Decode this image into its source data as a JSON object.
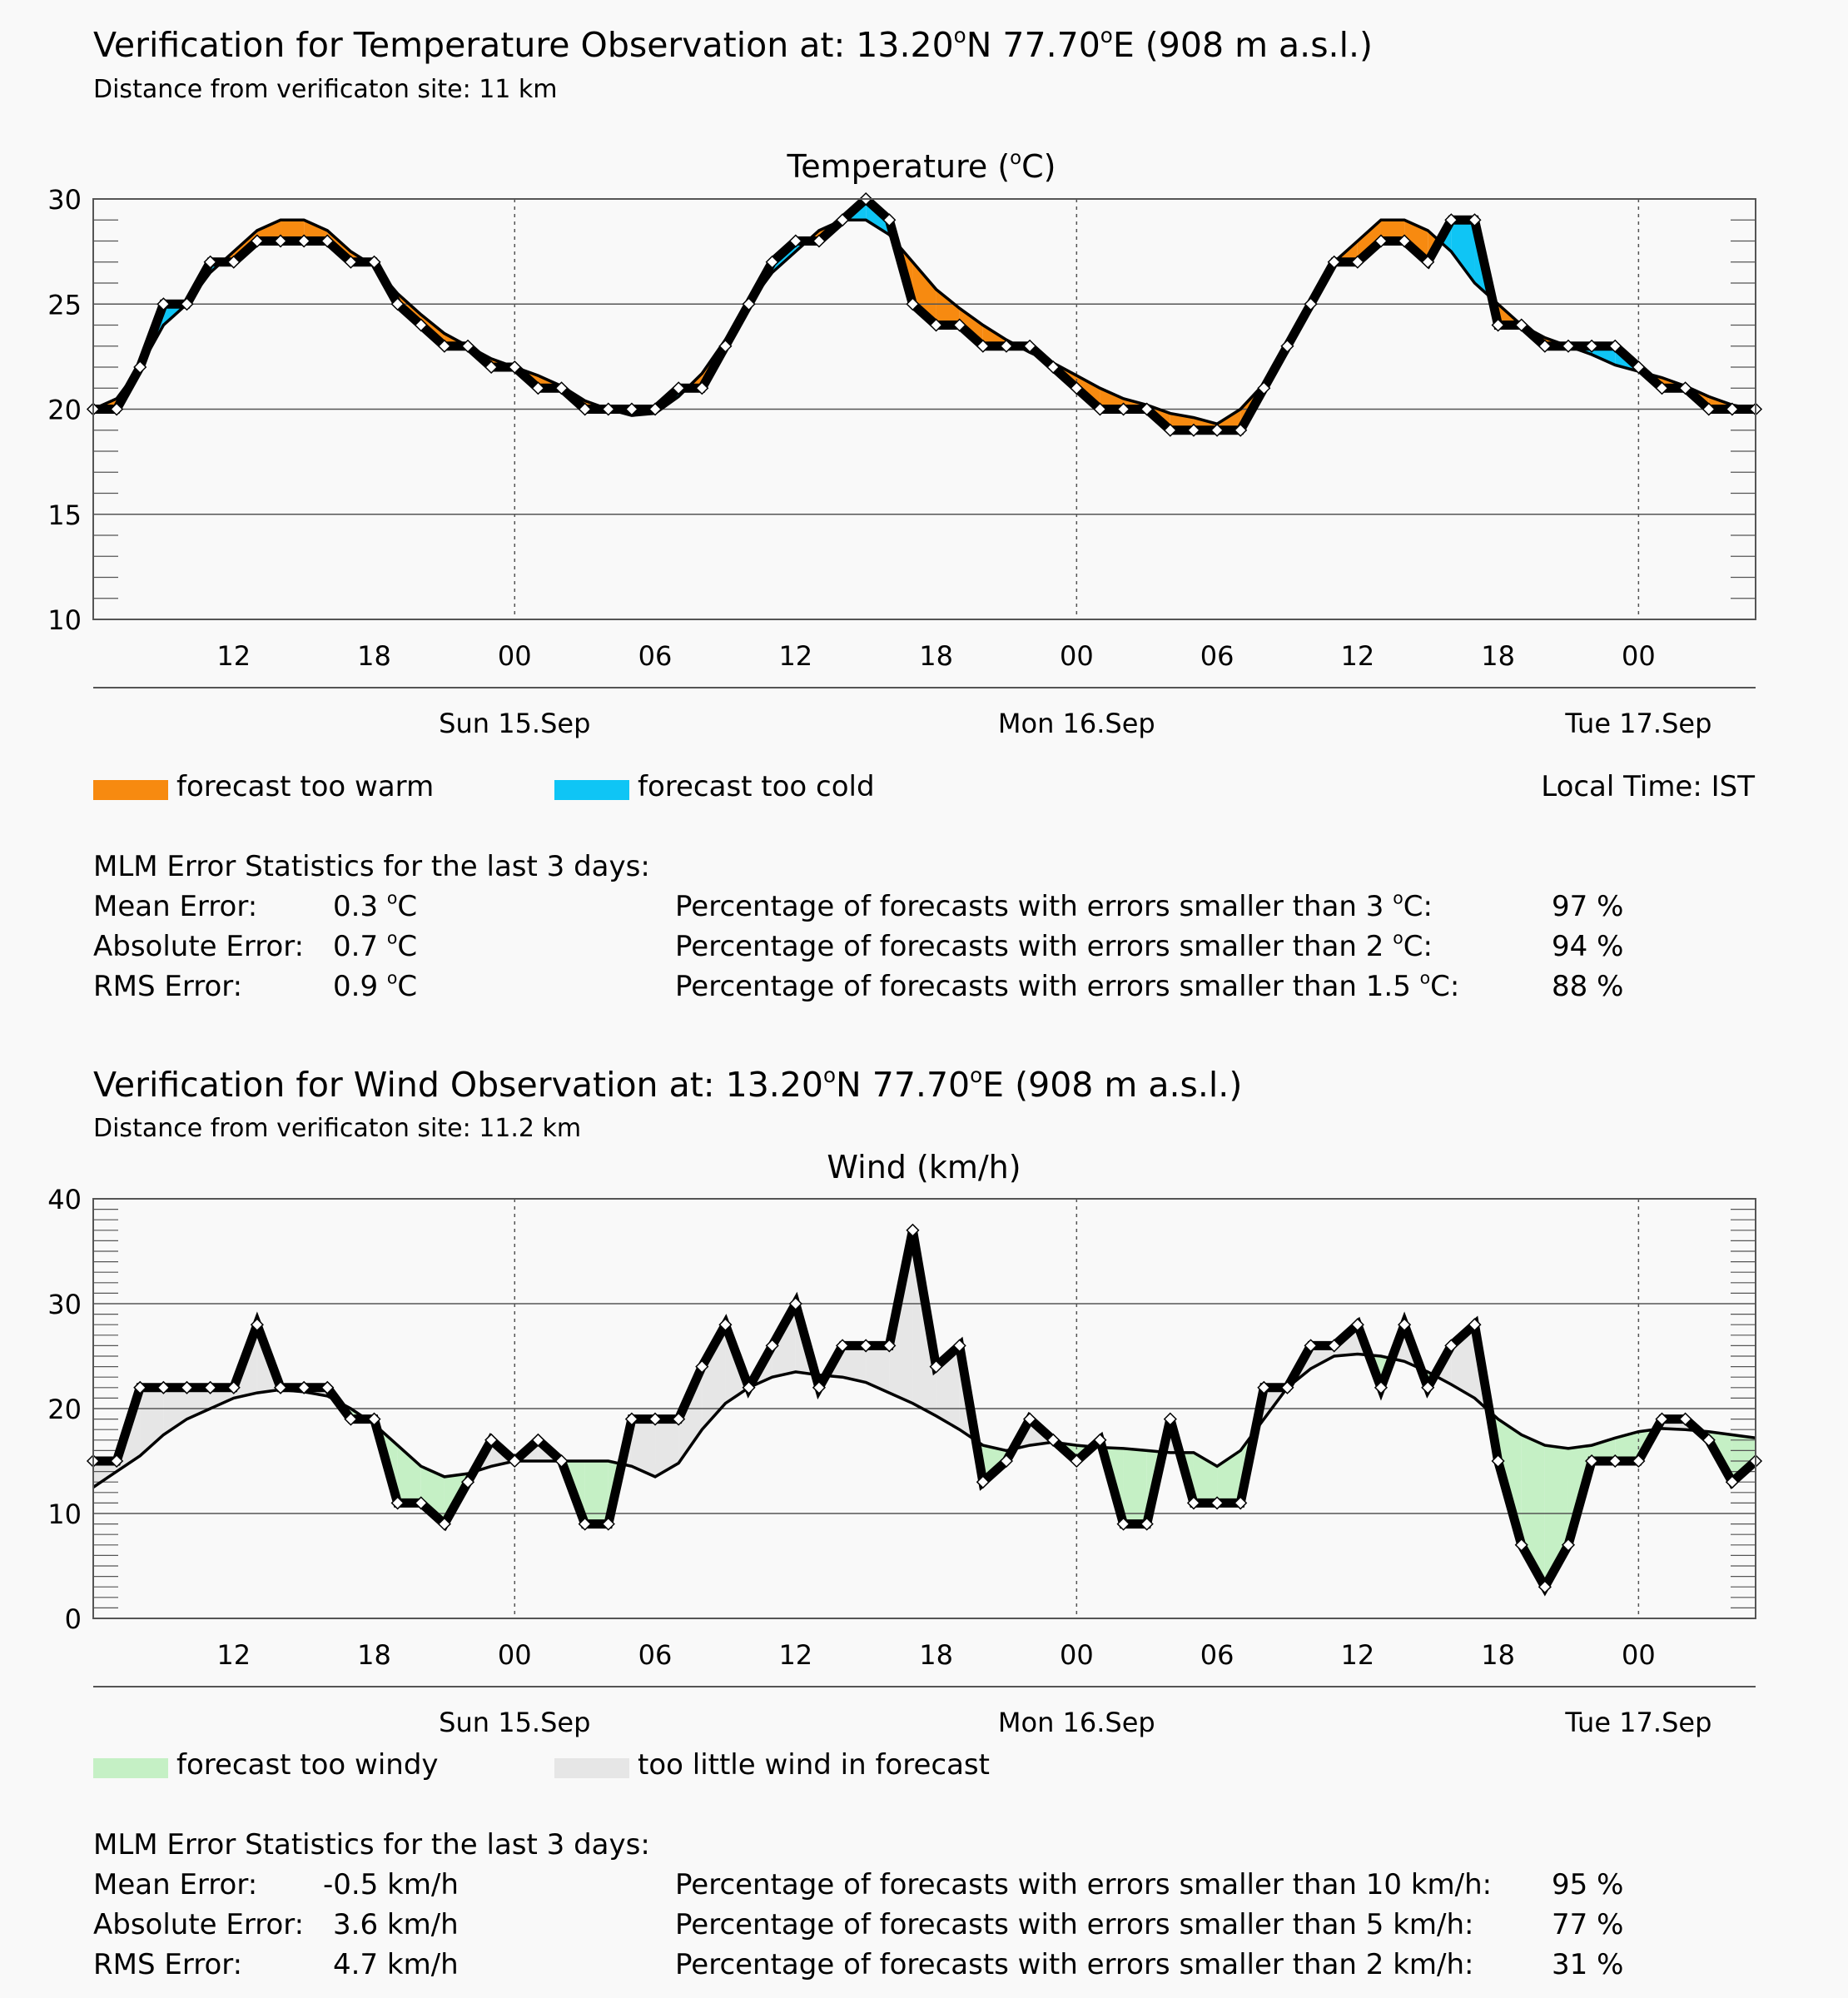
{
  "temp": {
    "title_prefix": "Verification for Temperature Observation at:  13.20",
    "title_lat_unit": "N 77.70",
    "title_lon_unit": "E (908 m a.s.l.)",
    "degree_mark": "o",
    "distance": "Distance from verificaton site:  11 km",
    "chart_title_main": "Temperature (",
    "chart_title_unit": "C)",
    "legend": {
      "warm": "forecast too warm",
      "cold": "forecast too cold",
      "local_time": "Local Time: IST",
      "warm_color": "#f78a10",
      "cold_color": "#0fc5f5"
    },
    "stats": {
      "heading": "MLM Error Statistics for the last 3 days:",
      "rows": [
        {
          "label": "Mean Error:",
          "value": "0.3",
          "unit": "C",
          "pct_label_a": "Percentage of forecasts with errors smaller than 3",
          "pct_label_b": "C:",
          "pct_value": "97 %"
        },
        {
          "label": "Absolute Error:",
          "value": "0.7",
          "unit": "C",
          "pct_label_a": "Percentage of forecasts with errors smaller than 2",
          "pct_label_b": "C:",
          "pct_value": "94 %"
        },
        {
          "label": "RMS Error:",
          "value": "0.9",
          "unit": "C",
          "pct_label_a": "Percentage of forecasts with errors smaller than 1.5",
          "pct_label_b": "C:",
          "pct_value": "88 %"
        }
      ]
    }
  },
  "wind": {
    "title_prefix": "Verification for Wind Observation at:  13.20",
    "title_lat_unit": "N 77.70",
    "title_lon_unit": "E (908 m a.s.l.)",
    "degree_mark": "o",
    "distance": "Distance from verificaton site:  11.2 km",
    "chart_title": "Wind (km/h)",
    "legend": {
      "windy": "forecast too windy",
      "little": "too little wind in forecast",
      "windy_color": "#c5f0c5",
      "little_color": "#e6e6e6"
    },
    "stats": {
      "heading": "MLM Error Statistics for the last 3 days:",
      "rows": [
        {
          "label": "Mean Error:",
          "value": "-0.5 km/h",
          "pct_label": "Percentage of forecasts with errors smaller than 10 km/h:",
          "pct_value": "95 %"
        },
        {
          "label": "Absolute Error:",
          "value": "3.6 km/h",
          "pct_label": "Percentage of forecasts with errors smaller than 5 km/h:",
          "pct_value": "77 %"
        },
        {
          "label": "RMS Error:",
          "value": "4.7 km/h",
          "pct_label": "Percentage of forecasts with errors smaller than 2 km/h:",
          "pct_value": "31 %"
        }
      ]
    }
  },
  "chart_data": [
    {
      "type": "line",
      "title": "Temperature (°C)",
      "x_unit": "hours from Sun 15.Sep 00 IST",
      "xlim": [
        -18,
        53
      ],
      "ylim": [
        10,
        30
      ],
      "y_ticks": [
        10,
        15,
        20,
        25,
        30
      ],
      "x_ticks": [
        -12,
        -6,
        0,
        6,
        12,
        18,
        24,
        30,
        36,
        42,
        48
      ],
      "x_tick_labels": [
        "12",
        "18",
        "00",
        "06",
        "12",
        "18",
        "00",
        "06",
        "12",
        "18",
        "00"
      ],
      "day_labels": [
        {
          "x": 0,
          "label": "Sun 15.Sep"
        },
        {
          "x": 24,
          "label": "Mon 16.Sep"
        },
        {
          "x": 48,
          "label": "Tue 17.Sep"
        }
      ],
      "grid": true,
      "series": [
        {
          "x": [
            -18,
            -17,
            -16,
            -15,
            -14,
            -13,
            -12,
            -11,
            -10,
            -9,
            -8,
            -7,
            -6,
            -5,
            -4,
            -3,
            -2,
            -1,
            0,
            1,
            2,
            3,
            4,
            5,
            6,
            7,
            8,
            9,
            10,
            11,
            12,
            13,
            14,
            15,
            16,
            17,
            18,
            19,
            20,
            21,
            22,
            23,
            24,
            25,
            26,
            27,
            28,
            29,
            30,
            31,
            32,
            33,
            34,
            35,
            36,
            37,
            38,
            39,
            40,
            41,
            42,
            43,
            44,
            45,
            46,
            47,
            48,
            49,
            50,
            51,
            52,
            53
          ],
          "y": [
            20,
            20,
            22,
            25,
            25,
            27,
            27,
            28,
            28,
            28,
            28,
            27,
            27,
            25,
            24,
            23,
            23,
            22,
            22,
            21,
            21,
            20,
            20,
            20,
            20,
            21,
            21,
            23,
            25,
            27,
            28,
            28,
            29,
            30,
            29,
            25,
            24,
            24,
            23,
            23,
            23,
            22,
            21,
            20,
            20,
            20,
            19,
            19,
            19,
            19,
            21,
            23,
            25,
            27,
            27,
            28,
            28,
            27,
            29,
            29,
            24,
            24,
            23,
            23,
            23,
            23,
            22,
            21,
            21,
            20,
            20,
            20
          ]
        },
        {
          "x": [
            -18,
            -17,
            -16,
            -15,
            -14,
            -13,
            -12,
            -11,
            -10,
            -9,
            -8,
            -7,
            -6,
            -5,
            -4,
            -3,
            -2,
            -1,
            0,
            1,
            2,
            3,
            4,
            5,
            6,
            7,
            8,
            9,
            10,
            11,
            12,
            13,
            14,
            15,
            16,
            17,
            18,
            19,
            20,
            21,
            22,
            23,
            24,
            25,
            26,
            27,
            28,
            29,
            30,
            31,
            32,
            33,
            34,
            35,
            36,
            37,
            38,
            39,
            40,
            41,
            42,
            43,
            44,
            45,
            46,
            47,
            48,
            49,
            50,
            51,
            52,
            53
          ],
          "y": [
            20,
            20.5,
            22,
            24,
            25,
            26.5,
            27.5,
            28.5,
            29,
            29,
            28.5,
            27.5,
            26.8,
            25.5,
            24.5,
            23.6,
            23,
            22.4,
            22,
            21.6,
            21.1,
            20.4,
            20,
            19.7,
            19.8,
            20.6,
            21.7,
            23.3,
            25,
            26.5,
            27.5,
            28.5,
            29,
            29,
            28.3,
            27,
            25.7,
            24.8,
            24,
            23.3,
            22.7,
            22.2,
            21.6,
            21,
            20.5,
            20.2,
            19.8,
            19.6,
            19.3,
            20,
            21.2,
            23.1,
            25,
            27,
            28,
            29,
            29,
            28.5,
            27.5,
            26,
            25,
            24,
            23.4,
            23,
            22.6,
            22.1,
            21.8,
            21.5,
            21.1,
            20.6,
            20.2,
            20
          ]
        }
      ]
    },
    {
      "type": "line",
      "title": "Wind (km/h)",
      "x_unit": "hours from Sun 15.Sep 00 IST",
      "xlim": [
        -18,
        53
      ],
      "ylim": [
        0,
        40
      ],
      "y_ticks": [
        0,
        10,
        20,
        30,
        40
      ],
      "x_ticks": [
        -12,
        -6,
        0,
        6,
        12,
        18,
        24,
        30,
        36,
        42,
        48
      ],
      "x_tick_labels": [
        "12",
        "18",
        "00",
        "06",
        "12",
        "18",
        "00",
        "06",
        "12",
        "18",
        "00"
      ],
      "day_labels": [
        {
          "x": 0,
          "label": "Sun 15.Sep"
        },
        {
          "x": 24,
          "label": "Mon 16.Sep"
        },
        {
          "x": 48,
          "label": "Tue 17.Sep"
        }
      ],
      "grid": true,
      "series": [
        {
          "x": [
            -18,
            -17,
            -16,
            -15,
            -14,
            -13,
            -12,
            -11,
            -10,
            -9,
            -8,
            -7,
            -6,
            -5,
            -4,
            -3,
            -2,
            -1,
            0,
            1,
            2,
            3,
            4,
            5,
            6,
            7,
            8,
            9,
            10,
            11,
            12,
            13,
            14,
            15,
            16,
            17,
            18,
            19,
            20,
            21,
            22,
            23,
            24,
            25,
            26,
            27,
            28,
            29,
            30,
            31,
            32,
            33,
            34,
            35,
            36,
            37,
            38,
            39,
            40,
            41,
            42,
            43,
            44,
            45,
            46,
            47,
            48,
            49,
            50,
            51,
            52,
            53
          ],
          "y": [
            15,
            15,
            22,
            22,
            22,
            22,
            22,
            28,
            22,
            22,
            22,
            19,
            19,
            11,
            11,
            9,
            13,
            17,
            15,
            17,
            15,
            9,
            9,
            19,
            19,
            19,
            24,
            28,
            22,
            26,
            30,
            22,
            26,
            26,
            26,
            37,
            24,
            26,
            13,
            15,
            19,
            17,
            15,
            17,
            9,
            9,
            19,
            11,
            11,
            11,
            22,
            22,
            26,
            26,
            28,
            22,
            28,
            22,
            26,
            28,
            15,
            7,
            3,
            7,
            15,
            15,
            15,
            19,
            19,
            17,
            13,
            15
          ]
        },
        {
          "x": [
            -18,
            -17,
            -16,
            -15,
            -14,
            -13,
            -12,
            -11,
            -10,
            -9,
            -8,
            -7,
            -6,
            -5,
            -4,
            -3,
            -2,
            -1,
            0,
            1,
            2,
            3,
            4,
            5,
            6,
            7,
            8,
            9,
            10,
            11,
            12,
            13,
            14,
            15,
            16,
            17,
            18,
            19,
            20,
            21,
            22,
            23,
            24,
            25,
            26,
            27,
            28,
            29,
            30,
            31,
            32,
            33,
            34,
            35,
            36,
            37,
            38,
            39,
            40,
            41,
            42,
            43,
            44,
            45,
            46,
            47,
            48,
            49,
            50,
            51,
            52,
            53
          ],
          "y": [
            12.5,
            14,
            15.5,
            17.5,
            19,
            20,
            21,
            21.5,
            21.8,
            21.6,
            21.2,
            20,
            18.5,
            16.5,
            14.5,
            13.5,
            13.8,
            14.5,
            15,
            15,
            15,
            15,
            15,
            14.5,
            13.5,
            14.8,
            18,
            20.5,
            22,
            23,
            23.5,
            23.2,
            23,
            22.5,
            21.5,
            20.5,
            19.3,
            18,
            16.5,
            16,
            16.5,
            16.8,
            16.5,
            16.3,
            16.2,
            16,
            15.8,
            15.8,
            14.5,
            16,
            19,
            22,
            23.8,
            25,
            25.2,
            25,
            24.5,
            23.5,
            22.3,
            21,
            19,
            17.5,
            16.5,
            16.2,
            16.5,
            17.2,
            17.8,
            18.1,
            18,
            17.8,
            17.5,
            17.2
          ]
        }
      ]
    }
  ]
}
